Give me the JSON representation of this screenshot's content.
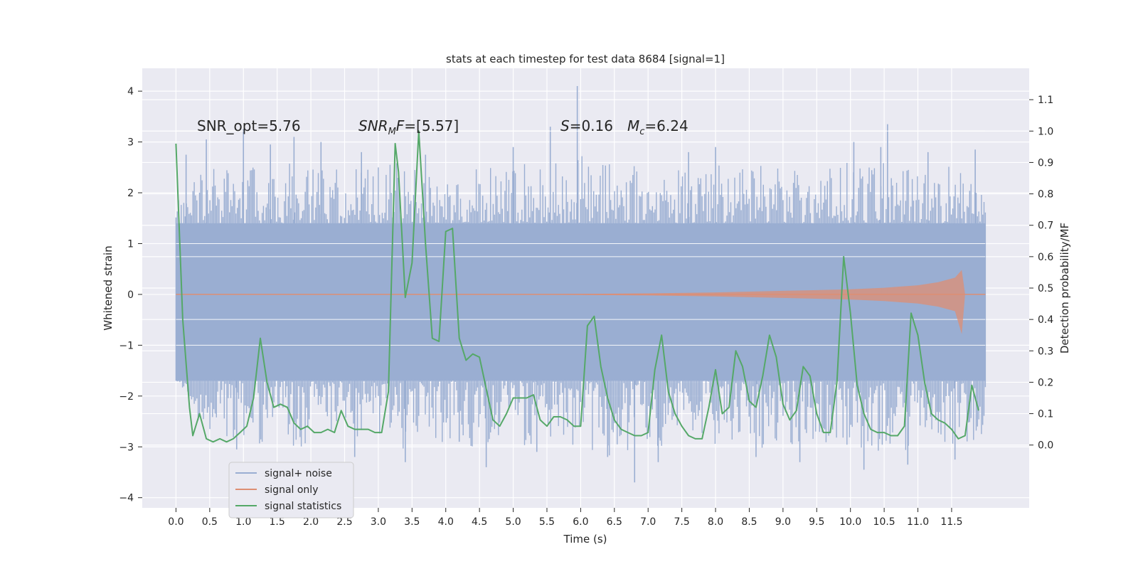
{
  "chart_data": {
    "type": "line",
    "title": "stats at each timestep for test data 8684 [signal=1]",
    "xlabel": "Time (s)",
    "ylabel": "Whitened strain",
    "y2label": "Detection probability/MF",
    "xlim": [
      -0.5,
      12.65
    ],
    "ylim": [
      -4.2,
      4.45
    ],
    "y2lim": [
      -0.2,
      1.2
    ],
    "x_ticks": [
      "0.0",
      "0.5",
      "1.0",
      "1.5",
      "2.0",
      "2.5",
      "3.0",
      "3.5",
      "4.0",
      "4.5",
      "5.0",
      "5.5",
      "6.0",
      "6.5",
      "7.0",
      "7.5",
      "8.0",
      "8.5",
      "9.0",
      "9.5",
      "10.0",
      "10.5",
      "11.0",
      "11.5"
    ],
    "y_ticks": [
      "4",
      "3",
      "2",
      "1",
      "0",
      "−1",
      "−2",
      "−3",
      "−4"
    ],
    "y2_ticks": [
      "1.1",
      "1.0",
      "0.9",
      "0.8",
      "0.7",
      "0.6",
      "0.5",
      "0.4",
      "0.3",
      "0.2",
      "0.1",
      "0.0"
    ],
    "grid": true,
    "legend_position": "lower-left",
    "annotations": {
      "snr_opt": "SNR_opt=5.76",
      "snr_mf": "=[5.57]",
      "s_value": "=0.16",
      "mc_value": "=6.24"
    },
    "series": [
      {
        "name": "signal+ noise",
        "color": "#9aaed2",
        "envelope": {
          "x": [
            0.0,
            0.5,
            1.0,
            1.5,
            2.0,
            2.5,
            3.0,
            3.5,
            4.0,
            4.5,
            5.0,
            5.5,
            6.0,
            6.5,
            7.0,
            7.5,
            8.0,
            8.5,
            9.0,
            9.5,
            10.0,
            10.5,
            11.0,
            11.5,
            12.0
          ],
          "upper": [
            1.9,
            2.6,
            2.5,
            2.7,
            2.5,
            2.6,
            2.7,
            2.5,
            2.4,
            2.5,
            2.6,
            2.6,
            2.8,
            2.6,
            2.6,
            2.5,
            2.6,
            2.5,
            2.6,
            2.5,
            2.6,
            2.6,
            2.5,
            2.6,
            2.2
          ],
          "lower": [
            -1.7,
            -2.9,
            -2.9,
            -3.0,
            -3.0,
            -2.8,
            -2.9,
            -3.1,
            -2.9,
            -3.1,
            -3.0,
            -2.9,
            -3.0,
            -3.2,
            -3.1,
            -2.9,
            -3.0,
            -3.1,
            -3.1,
            -2.9,
            -3.0,
            -3.2,
            -3.0,
            -3.0,
            -2.8
          ]
        },
        "core_band": [
          -1.7,
          1.4
        ],
        "spikes": [
          {
            "x": 0.15,
            "y": 2.75
          },
          {
            "x": 0.45,
            "y": 3.05
          },
          {
            "x": 0.9,
            "y": -3.05
          },
          {
            "x": 1.0,
            "y": 3.25
          },
          {
            "x": 1.4,
            "y": 2.95
          },
          {
            "x": 1.75,
            "y": 3.1
          },
          {
            "x": 2.15,
            "y": 3.0
          },
          {
            "x": 2.65,
            "y": -3.2
          },
          {
            "x": 2.75,
            "y": 2.8
          },
          {
            "x": 3.4,
            "y": -3.3
          },
          {
            "x": 3.7,
            "y": 2.75
          },
          {
            "x": 4.2,
            "y": -2.9
          },
          {
            "x": 4.6,
            "y": -3.4
          },
          {
            "x": 5.0,
            "y": 2.9
          },
          {
            "x": 5.35,
            "y": -3.1
          },
          {
            "x": 5.55,
            "y": 3.3
          },
          {
            "x": 5.95,
            "y": 4.1
          },
          {
            "x": 6.4,
            "y": -3.2
          },
          {
            "x": 6.8,
            "y": -3.7
          },
          {
            "x": 7.15,
            "y": -3.3
          },
          {
            "x": 7.6,
            "y": 2.8
          },
          {
            "x": 8.0,
            "y": 2.9
          },
          {
            "x": 8.6,
            "y": -3.2
          },
          {
            "x": 9.25,
            "y": -3.3
          },
          {
            "x": 10.05,
            "y": 3.0
          },
          {
            "x": 10.2,
            "y": -3.45
          },
          {
            "x": 10.45,
            "y": 2.9
          },
          {
            "x": 10.55,
            "y": 3.35
          },
          {
            "x": 10.85,
            "y": -3.35
          },
          {
            "x": 11.15,
            "y": 2.8
          },
          {
            "x": 11.55,
            "y": -3.25
          },
          {
            "x": 11.85,
            "y": 2.85
          }
        ]
      },
      {
        "name": "signal only",
        "color": "#dd8e73",
        "envelope": {
          "x": [
            0.0,
            5.0,
            6.0,
            7.0,
            8.0,
            9.0,
            10.0,
            10.5,
            11.0,
            11.3,
            11.55,
            11.65,
            11.7,
            12.0
          ],
          "upper": [
            0.0,
            0.0,
            0.01,
            0.02,
            0.04,
            0.07,
            0.1,
            0.13,
            0.18,
            0.24,
            0.33,
            0.48,
            0.0,
            0.0
          ],
          "lower": [
            0.0,
            0.0,
            -0.01,
            -0.02,
            -0.04,
            -0.07,
            -0.1,
            -0.13,
            -0.18,
            -0.24,
            -0.33,
            -0.78,
            0.0,
            0.0
          ]
        }
      },
      {
        "name": "signal statistics",
        "color": "#55a868",
        "axis": "right",
        "x": [
          0.0,
          0.1,
          0.2,
          0.25,
          0.35,
          0.45,
          0.55,
          0.65,
          0.75,
          0.85,
          0.95,
          1.05,
          1.15,
          1.25,
          1.35,
          1.45,
          1.55,
          1.65,
          1.75,
          1.85,
          1.95,
          2.05,
          2.15,
          2.25,
          2.35,
          2.45,
          2.55,
          2.65,
          2.75,
          2.85,
          2.95,
          3.05,
          3.15,
          3.25,
          3.3,
          3.4,
          3.5,
          3.6,
          3.7,
          3.8,
          3.9,
          4.0,
          4.1,
          4.2,
          4.3,
          4.4,
          4.5,
          4.6,
          4.7,
          4.8,
          4.9,
          5.0,
          5.1,
          5.2,
          5.3,
          5.4,
          5.5,
          5.6,
          5.7,
          5.8,
          5.9,
          6.0,
          6.1,
          6.2,
          6.3,
          6.4,
          6.5,
          6.6,
          6.7,
          6.8,
          6.9,
          7.0,
          7.1,
          7.2,
          7.3,
          7.4,
          7.5,
          7.6,
          7.7,
          7.8,
          7.9,
          8.0,
          8.1,
          8.2,
          8.3,
          8.4,
          8.5,
          8.6,
          8.7,
          8.8,
          8.9,
          9.0,
          9.1,
          9.2,
          9.3,
          9.4,
          9.5,
          9.6,
          9.7,
          9.8,
          9.9,
          10.0,
          10.1,
          10.2,
          10.3,
          10.4,
          10.5,
          10.6,
          10.7,
          10.8,
          10.9,
          11.0,
          11.1,
          11.2,
          11.3,
          11.4,
          11.5,
          11.6,
          11.7,
          11.8,
          11.9
        ],
        "y": [
          0.96,
          0.4,
          0.12,
          0.03,
          0.1,
          0.02,
          0.01,
          0.02,
          0.01,
          0.02,
          0.04,
          0.06,
          0.15,
          0.34,
          0.2,
          0.12,
          0.13,
          0.12,
          0.07,
          0.05,
          0.06,
          0.04,
          0.04,
          0.05,
          0.04,
          0.11,
          0.06,
          0.05,
          0.05,
          0.05,
          0.04,
          0.04,
          0.17,
          0.96,
          0.87,
          0.47,
          0.58,
          1.0,
          0.64,
          0.34,
          0.33,
          0.68,
          0.69,
          0.34,
          0.27,
          0.29,
          0.28,
          0.18,
          0.08,
          0.06,
          0.1,
          0.15,
          0.15,
          0.15,
          0.16,
          0.08,
          0.06,
          0.09,
          0.09,
          0.08,
          0.06,
          0.06,
          0.38,
          0.41,
          0.25,
          0.15,
          0.08,
          0.05,
          0.04,
          0.03,
          0.03,
          0.04,
          0.24,
          0.35,
          0.17,
          0.1,
          0.06,
          0.03,
          0.02,
          0.02,
          0.12,
          0.24,
          0.1,
          0.12,
          0.3,
          0.25,
          0.14,
          0.12,
          0.22,
          0.35,
          0.28,
          0.13,
          0.08,
          0.11,
          0.25,
          0.22,
          0.1,
          0.04,
          0.04,
          0.2,
          0.6,
          0.42,
          0.19,
          0.1,
          0.05,
          0.04,
          0.04,
          0.03,
          0.03,
          0.06,
          0.42,
          0.35,
          0.2,
          0.1,
          0.08,
          0.07,
          0.05,
          0.02,
          0.03,
          0.19,
          0.11
        ]
      }
    ]
  }
}
